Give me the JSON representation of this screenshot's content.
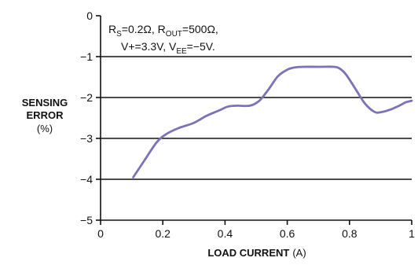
{
  "chart_data": {
    "type": "line",
    "title": "",
    "xlabel": "LOAD CURRENT",
    "xlabel_unit": "(A)",
    "ylabel_lines": [
      "SENSING",
      "ERROR",
      "(%)"
    ],
    "xlim": [
      0,
      1
    ],
    "ylim": [
      -5,
      0
    ],
    "xticks": [
      0,
      0.2,
      0.4,
      0.6,
      0.8,
      1
    ],
    "xtick_labels": [
      "0",
      "0.2",
      "0.4",
      "0.6",
      "0.8",
      "1"
    ],
    "yticks": [
      0,
      -1,
      -2,
      -3,
      -4,
      -5
    ],
    "ytick_labels": [
      "0",
      "−1",
      "−2",
      "−3",
      "−4",
      "−5"
    ],
    "grid": "horizontal",
    "line_color": "#7b72b8",
    "annotation": {
      "line1": {
        "p1": "R",
        "s1": "S",
        "p2": "=0.2Ω, R",
        "s2": "OUT",
        "p3": "=500Ω,"
      },
      "line2": {
        "p1": "V+=3.3V, V",
        "s1": "EE",
        "p2": "=−5V."
      }
    },
    "series": [
      {
        "x": [
          0.105,
          0.14,
          0.18,
          0.21,
          0.25,
          0.3,
          0.34,
          0.38,
          0.41,
          0.44,
          0.48,
          0.51,
          0.54,
          0.57,
          0.6,
          0.62,
          0.65,
          0.7,
          0.75,
          0.77,
          0.79,
          0.82,
          0.85,
          0.88,
          0.9,
          0.93,
          0.96,
          0.98,
          1.0
        ],
        "y": [
          -3.95,
          -3.55,
          -3.1,
          -2.9,
          -2.75,
          -2.62,
          -2.45,
          -2.32,
          -2.22,
          -2.2,
          -2.2,
          -2.08,
          -1.8,
          -1.48,
          -1.32,
          -1.27,
          -1.25,
          -1.25,
          -1.25,
          -1.3,
          -1.45,
          -1.8,
          -2.15,
          -2.35,
          -2.36,
          -2.3,
          -2.2,
          -2.12,
          -2.08
        ]
      }
    ]
  }
}
